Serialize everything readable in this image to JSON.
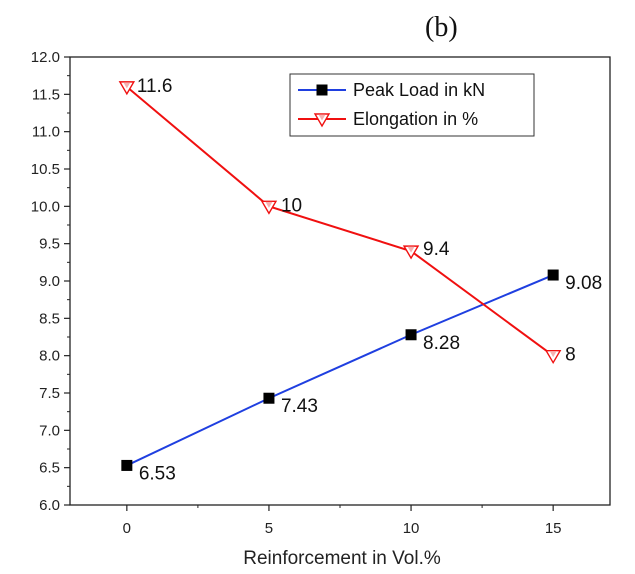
{
  "chart_data": {
    "type": "line",
    "panel_label": "(b)",
    "title": "",
    "xlabel": "Reinforcement in Vol.%",
    "ylabel": "",
    "x": [
      0,
      5,
      10,
      15
    ],
    "x_ticks": [
      0,
      5,
      10,
      15
    ],
    "xlim": [
      -2,
      17
    ],
    "ylim": [
      6.0,
      12.0
    ],
    "y_ticks": [
      "6.0",
      "6.5",
      "7.0",
      "7.5",
      "8.0",
      "8.5",
      "9.0",
      "9.5",
      "10.0",
      "10.5",
      "11.0",
      "11.5",
      "12.0"
    ],
    "grid": false,
    "legend_position": "top-right",
    "series": [
      {
        "name": "Peak Load in kN",
        "color": "#1f3fe0",
        "marker": "square",
        "values": [
          6.53,
          7.43,
          8.28,
          9.08
        ],
        "labels": [
          "6.53",
          "7.43",
          "8.28",
          "9.08"
        ]
      },
      {
        "name": "Elongation in %",
        "color": "#f01010",
        "marker": "triangle-down",
        "values": [
          11.6,
          10,
          9.4,
          8
        ],
        "labels": [
          "11.6",
          "10",
          "9.4",
          "8"
        ]
      }
    ]
  }
}
